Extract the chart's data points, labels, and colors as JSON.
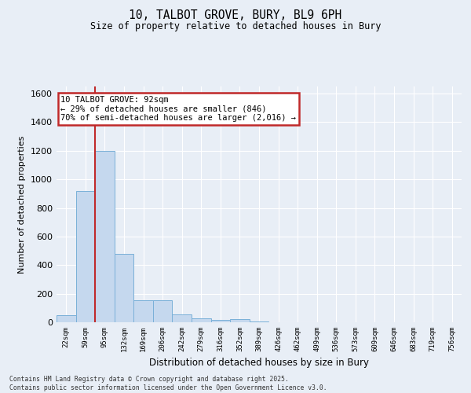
{
  "title_line1": "10, TALBOT GROVE, BURY, BL9 6PH",
  "title_line2": "Size of property relative to detached houses in Bury",
  "xlabel": "Distribution of detached houses by size in Bury",
  "ylabel": "Number of detached properties",
  "bar_labels": [
    "22sqm",
    "59sqm",
    "95sqm",
    "132sqm",
    "169sqm",
    "206sqm",
    "242sqm",
    "279sqm",
    "316sqm",
    "352sqm",
    "389sqm",
    "426sqm",
    "462sqm",
    "499sqm",
    "536sqm",
    "573sqm",
    "609sqm",
    "646sqm",
    "683sqm",
    "719sqm",
    "756sqm"
  ],
  "bar_values": [
    50,
    920,
    1200,
    480,
    155,
    155,
    55,
    30,
    15,
    20,
    5,
    2,
    0,
    0,
    0,
    0,
    0,
    0,
    0,
    0,
    0
  ],
  "bar_color": "#c5d8ee",
  "bar_edge_color": "#7ab0d8",
  "vline_color": "#c0292a",
  "vline_x": 1.5,
  "annotation_title": "10 TALBOT GROVE: 92sqm",
  "annotation_line1": "← 29% of detached houses are smaller (846)",
  "annotation_line2": "70% of semi-detached houses are larger (2,016) →",
  "annotation_box_color": "#ffffff",
  "annotation_box_edge": "#c0292a",
  "ylim": [
    0,
    1650
  ],
  "yticks": [
    0,
    200,
    400,
    600,
    800,
    1000,
    1200,
    1400,
    1600
  ],
  "bg_color": "#e8eef6",
  "plot_bg_color": "#e8eef6",
  "grid_color": "#ffffff",
  "footer_line1": "Contains HM Land Registry data © Crown copyright and database right 2025.",
  "footer_line2": "Contains public sector information licensed under the Open Government Licence v3.0."
}
